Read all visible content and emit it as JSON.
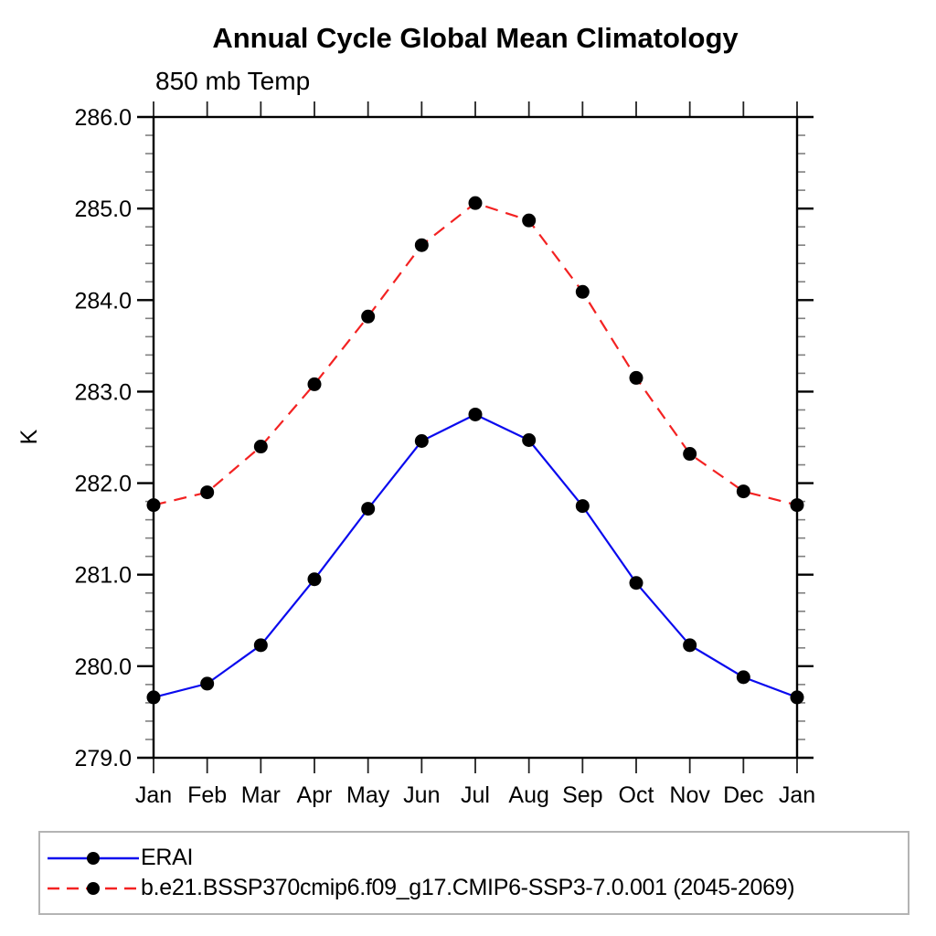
{
  "title": "Annual Cycle Global Mean Climatology",
  "subtitle": "850 mb Temp",
  "chart_data": {
    "type": "line",
    "categories": [
      "Jan",
      "Feb",
      "Mar",
      "Apr",
      "May",
      "Jun",
      "Jul",
      "Aug",
      "Sep",
      "Oct",
      "Nov",
      "Dec",
      "Jan"
    ],
    "series": [
      {
        "name": "ERAI",
        "color": "#0a0aee",
        "line_style": "solid",
        "marker": "filled-circle",
        "marker_color": "#000000",
        "values": [
          279.66,
          279.81,
          280.23,
          280.95,
          281.72,
          282.46,
          282.75,
          282.47,
          281.75,
          280.91,
          280.23,
          279.88,
          279.66
        ]
      },
      {
        "name": "b.e21.BSSP370cmip6.f09_g17.CMIP6-SSP3-7.0.001 (2045-2069)",
        "color": "#f32222",
        "line_style": "dashed",
        "marker": "filled-circle",
        "marker_color": "#000000",
        "values": [
          281.76,
          281.9,
          282.4,
          283.08,
          283.82,
          284.6,
          285.06,
          284.87,
          284.09,
          283.15,
          282.32,
          281.91,
          281.76
        ]
      }
    ],
    "xlabel": "",
    "ylabel": "K",
    "ylim": [
      279.0,
      286.0
    ],
    "y_major_step": 1.0,
    "y_minor_step": 0.2,
    "y_tick_decimals": 1,
    "grid": false,
    "legend_position": "bottom",
    "axis_color": "#000000",
    "minor_tick_color": "#808080"
  }
}
